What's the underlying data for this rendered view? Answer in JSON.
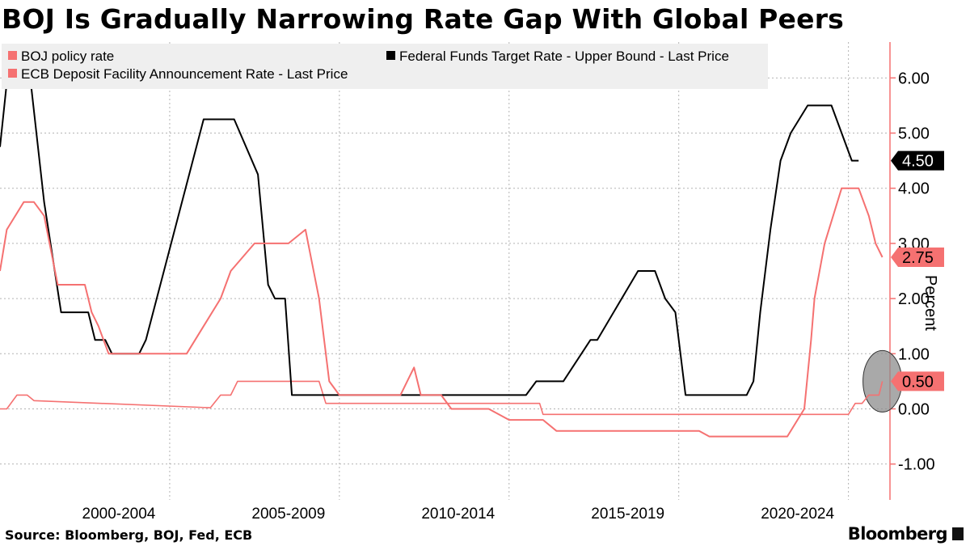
{
  "title": "BOJ Is Gradually Narrowing Rate Gap With Global Peers",
  "source": "Source: Bloomberg, BOJ, Fed, ECB",
  "brand": "Bloomberg",
  "chart_data": {
    "type": "line",
    "ylabel": "Percent",
    "ylim": [
      -1.65,
      6.65
    ],
    "yticks": [
      -1,
      0,
      1,
      2,
      3,
      4,
      5,
      6
    ],
    "ytick_labels": [
      "-1.00",
      "0.00",
      "1.00",
      "2.00",
      "3.00",
      "4.00",
      "5.00",
      "6.00"
    ],
    "xlim": [
      1999.0,
      2025.2
    ],
    "xtick_labels": [
      "2000-2004",
      "2005-2009",
      "2010-2014",
      "2015-2019",
      "2020-2024"
    ],
    "xtick_centers": [
      2002.5,
      2007.5,
      2012.5,
      2017.5,
      2022.5
    ],
    "year_separators": [
      2004,
      2009,
      2014,
      2019,
      2024
    ],
    "grid": true,
    "legend_position": "top",
    "highlight": {
      "x": 2025.0,
      "y": 0.5,
      "note": "circled latest BOJ value"
    },
    "series": [
      {
        "name": "BOJ policy rate",
        "color": "#f57171",
        "last_value": "0.50",
        "points": [
          [
            1999.0,
            0.0
          ],
          [
            1999.2,
            0.0
          ],
          [
            1999.5,
            0.25
          ],
          [
            1999.8,
            0.25
          ],
          [
            2000.0,
            0.15
          ],
          [
            2005.2,
            0.02
          ],
          [
            2005.2,
            0.02
          ],
          [
            2005.5,
            0.25
          ],
          [
            2005.8,
            0.25
          ],
          [
            2006.0,
            0.5
          ],
          [
            2007.3,
            0.5
          ],
          [
            2007.6,
            0.5
          ],
          [
            2008.4,
            0.5
          ],
          [
            2008.6,
            0.1
          ],
          [
            2012.0,
            0.1
          ],
          [
            2014.9,
            0.1
          ],
          [
            2015.0,
            -0.1
          ],
          [
            2023.0,
            -0.1
          ],
          [
            2024.0,
            -0.1
          ],
          [
            2024.2,
            0.1
          ],
          [
            2024.4,
            0.1
          ],
          [
            2024.6,
            0.25
          ],
          [
            2024.9,
            0.25
          ],
          [
            2025.0,
            0.5
          ]
        ]
      },
      {
        "name": "Federal Funds Target Rate - Upper Bound - Last Price",
        "color": "#000000",
        "last_value": "4.50",
        "points": [
          [
            1999.0,
            4.75
          ],
          [
            1999.3,
            6.5
          ],
          [
            1999.8,
            6.5
          ],
          [
            2000.3,
            3.75
          ],
          [
            2000.8,
            1.75
          ],
          [
            2001.6,
            1.75
          ],
          [
            2001.8,
            1.25
          ],
          [
            2002.1,
            1.25
          ],
          [
            2002.3,
            1.0
          ],
          [
            2003.1,
            1.0
          ],
          [
            2003.3,
            1.25
          ],
          [
            2005.0,
            5.25
          ],
          [
            2005.9,
            5.25
          ],
          [
            2006.6,
            4.25
          ],
          [
            2006.9,
            2.25
          ],
          [
            2007.1,
            2.0
          ],
          [
            2007.4,
            2.0
          ],
          [
            2007.6,
            0.25
          ],
          [
            2014.5,
            0.25
          ],
          [
            2014.8,
            0.5
          ],
          [
            2015.6,
            0.5
          ],
          [
            2016.4,
            1.25
          ],
          [
            2016.6,
            1.25
          ],
          [
            2017.8,
            2.5
          ],
          [
            2018.3,
            2.5
          ],
          [
            2018.6,
            2.0
          ],
          [
            2018.9,
            1.75
          ],
          [
            2019.2,
            0.25
          ],
          [
            2021.0,
            0.25
          ],
          [
            2021.2,
            0.5
          ],
          [
            2021.4,
            1.75
          ],
          [
            2021.7,
            3.25
          ],
          [
            2022.0,
            4.5
          ],
          [
            2022.3,
            5.0
          ],
          [
            2022.8,
            5.5
          ],
          [
            2023.5,
            5.5
          ],
          [
            2023.8,
            5.0
          ],
          [
            2024.1,
            4.5
          ],
          [
            2024.3,
            4.5
          ]
        ]
      },
      {
        "name": "ECB Deposit Facility Announcement Rate - Last Price",
        "color": "#f57171",
        "last_value": "2.75",
        "points": [
          [
            1999.0,
            2.5
          ],
          [
            1999.2,
            3.25
          ],
          [
            1999.7,
            3.75
          ],
          [
            2000.0,
            3.75
          ],
          [
            2000.3,
            3.5
          ],
          [
            2000.7,
            2.25
          ],
          [
            2001.5,
            2.25
          ],
          [
            2001.7,
            1.75
          ],
          [
            2001.9,
            1.5
          ],
          [
            2002.2,
            1.0
          ],
          [
            2004.5,
            1.0
          ],
          [
            2005.0,
            1.5
          ],
          [
            2005.5,
            2.0
          ],
          [
            2005.8,
            2.5
          ],
          [
            2006.5,
            3.0
          ],
          [
            2007.5,
            3.0
          ],
          [
            2008.0,
            3.25
          ],
          [
            2008.4,
            2.0
          ],
          [
            2008.7,
            0.5
          ],
          [
            2009.0,
            0.25
          ],
          [
            2009.5,
            0.25
          ],
          [
            2010.8,
            0.25
          ],
          [
            2011.2,
            0.75
          ],
          [
            2011.4,
            0.25
          ],
          [
            2012.0,
            0.25
          ],
          [
            2012.3,
            0.0
          ],
          [
            2013.4,
            0.0
          ],
          [
            2014.0,
            -0.2
          ],
          [
            2015.0,
            -0.2
          ],
          [
            2015.4,
            -0.4
          ],
          [
            2016.0,
            -0.4
          ],
          [
            2019.6,
            -0.4
          ],
          [
            2019.9,
            -0.5
          ],
          [
            2022.2,
            -0.5
          ],
          [
            2022.7,
            0.0
          ],
          [
            2022.9,
            1.25
          ],
          [
            2023.0,
            2.0
          ],
          [
            2023.3,
            3.0
          ],
          [
            2023.8,
            4.0
          ],
          [
            2024.3,
            4.0
          ],
          [
            2024.6,
            3.5
          ],
          [
            2024.8,
            3.0
          ],
          [
            2025.0,
            2.75
          ]
        ]
      }
    ]
  }
}
